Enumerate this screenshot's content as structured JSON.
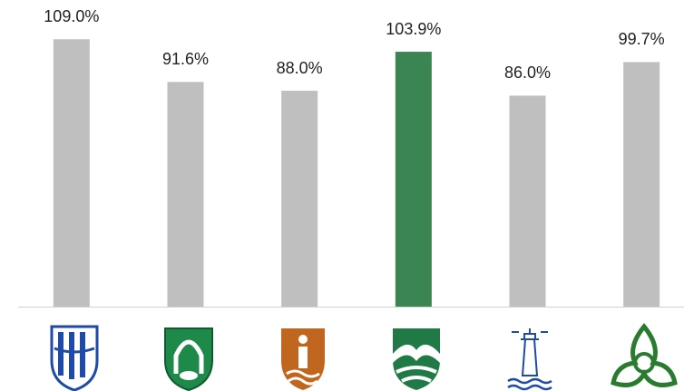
{
  "chart_data": {
    "type": "bar",
    "categories": [
      null,
      null,
      null,
      null,
      null,
      null
    ],
    "values": [
      109.0,
      91.6,
      88.0,
      103.9,
      86.0,
      99.7
    ],
    "value_labels": [
      "109.0%",
      "91.6%",
      "88.0%",
      "103.9%",
      "86.0%",
      "99.7%"
    ],
    "colors": [
      "#bfbfbf",
      "#bfbfbf",
      "#bfbfbf",
      "#3a8552",
      "#bfbfbf",
      "#bfbfbf"
    ],
    "ylim": [
      0,
      125
    ]
  }
}
